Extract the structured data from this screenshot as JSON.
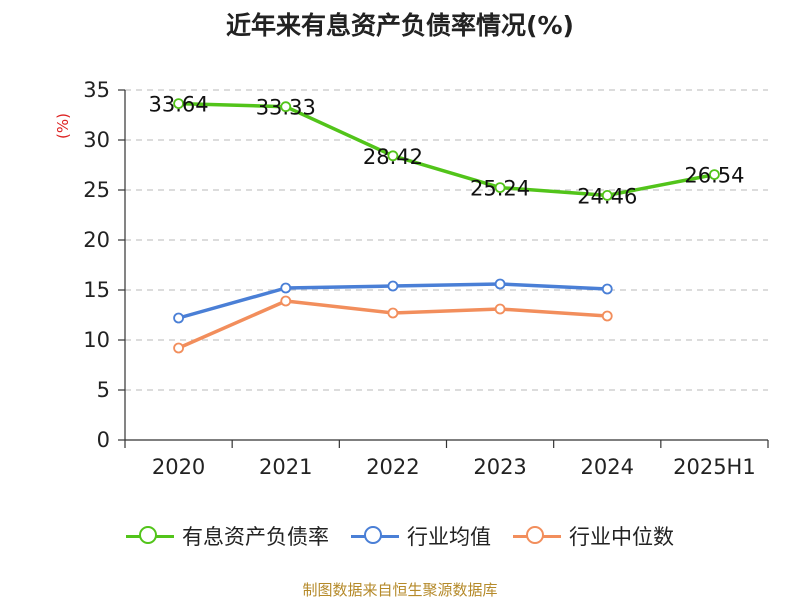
{
  "title": "近年来有息资产负债率情况(%)",
  "source": "制图数据来自恒生聚源数据库",
  "chart_data": {
    "type": "line",
    "ylabel": "(%)",
    "categories": [
      "2020",
      "2021",
      "2022",
      "2023",
      "2024",
      "2025H1"
    ],
    "ylim": [
      0,
      35
    ],
    "yticks": [
      0,
      5,
      10,
      15,
      20,
      25,
      30,
      35
    ],
    "grid": true,
    "legend_position": "bottom",
    "series": [
      {
        "name": "有息资产负债率",
        "color": "#52c41a",
        "values": [
          33.64,
          33.33,
          28.42,
          25.24,
          24.46,
          26.54
        ],
        "labels": [
          "33.64",
          "33.33",
          "28.42",
          "25.24",
          "24.46",
          "26.54"
        ]
      },
      {
        "name": "行业均值",
        "color": "#4a7fd6",
        "values": [
          12.2,
          15.2,
          15.4,
          15.6,
          15.1,
          null
        ]
      },
      {
        "name": "行业中位数",
        "color": "#f28e5c",
        "values": [
          9.2,
          13.9,
          12.7,
          13.1,
          12.4,
          null
        ]
      }
    ]
  }
}
